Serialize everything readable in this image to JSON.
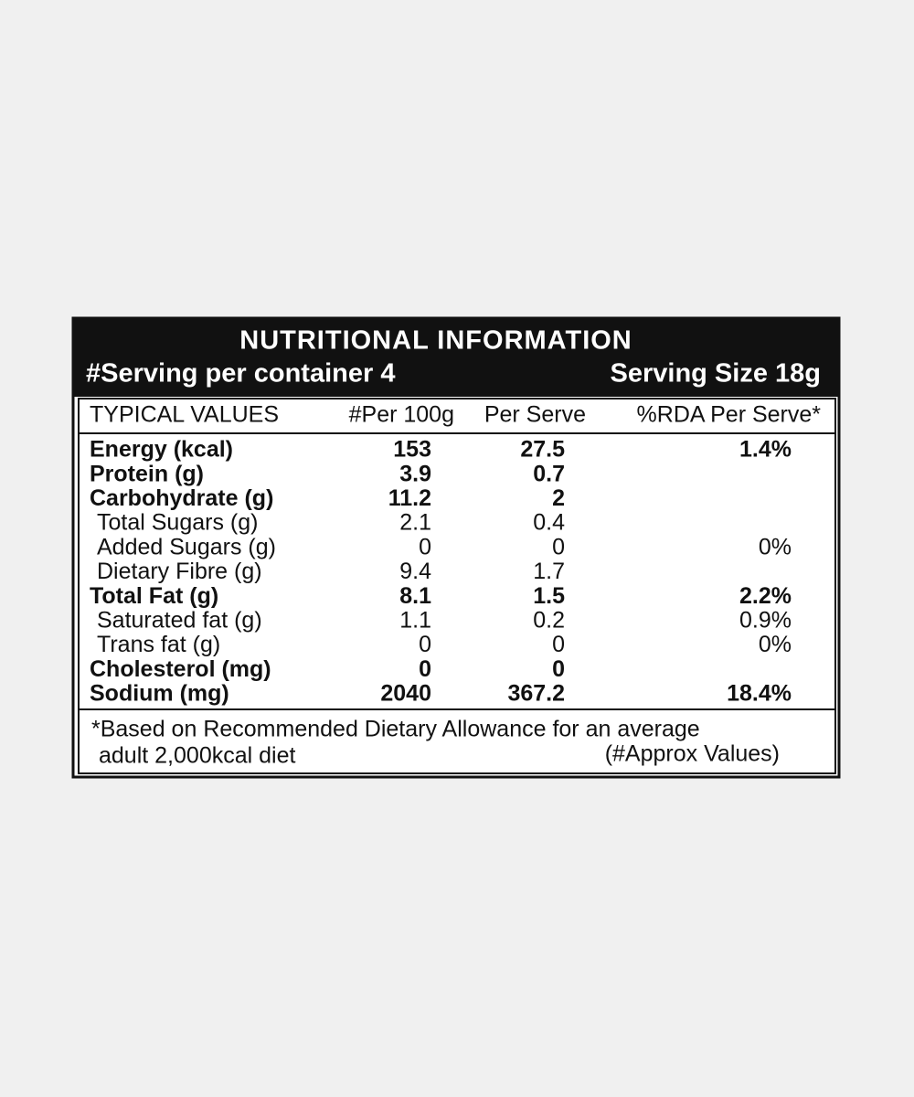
{
  "header": {
    "title": "NUTRITIONAL INFORMATION",
    "servings": "#Serving per container 4",
    "serving_size": "Serving Size 18g"
  },
  "table": {
    "columns": [
      "TYPICAL VALUES",
      "#Per 100g",
      "Per Serve",
      "%RDA Per Serve*"
    ],
    "rows": [
      {
        "name": "Energy (kcal)",
        "per_100g": "153",
        "per_serve": "27.5",
        "rda": "1.4%",
        "bold": true
      },
      {
        "name": "Protein (g)",
        "per_100g": "3.9",
        "per_serve": "0.7",
        "bold": true
      },
      {
        "name": "Carbohydrate (g)",
        "per_100g": "11.2",
        "per_serve": "2",
        "bold": true
      },
      {
        "name": "Total Sugars (g)",
        "per_100g": "2.1",
        "per_serve": "0.4",
        "bold": false
      },
      {
        "name": "Added Sugars (g)",
        "per_100g": "0",
        "per_serve": "0",
        "rda": "0%",
        "bold": false
      },
      {
        "name": "Dietary Fibre (g)",
        "per_100g": "9.4",
        "per_serve": "1.7",
        "bold": false
      },
      {
        "name": "Total Fat (g)",
        "per_100g": "8.1",
        "per_serve": "1.5",
        "rda": "2.2%",
        "bold": true
      },
      {
        "name": "Saturated fat (g)",
        "per_100g": "1.1",
        "per_serve": "0.2",
        "rda": "0.9%",
        "bold": false
      },
      {
        "name": "Trans fat (g)",
        "per_100g": "0",
        "per_serve": "0",
        "rda": "0%",
        "bold": false
      },
      {
        "name": "Cholesterol (mg)",
        "per_100g": "0",
        "per_serve": "0",
        "bold": true
      },
      {
        "name": "Sodium (mg)",
        "per_100g": "2040",
        "per_serve": "367.2",
        "rda": "18.4%",
        "bold": true
      }
    ]
  },
  "footer": {
    "note": "*Based on Recommended Dietary Allowance for an average",
    "note_line2": "adult 2,000kcal diet",
    "approx": "(#Approx Values)"
  }
}
